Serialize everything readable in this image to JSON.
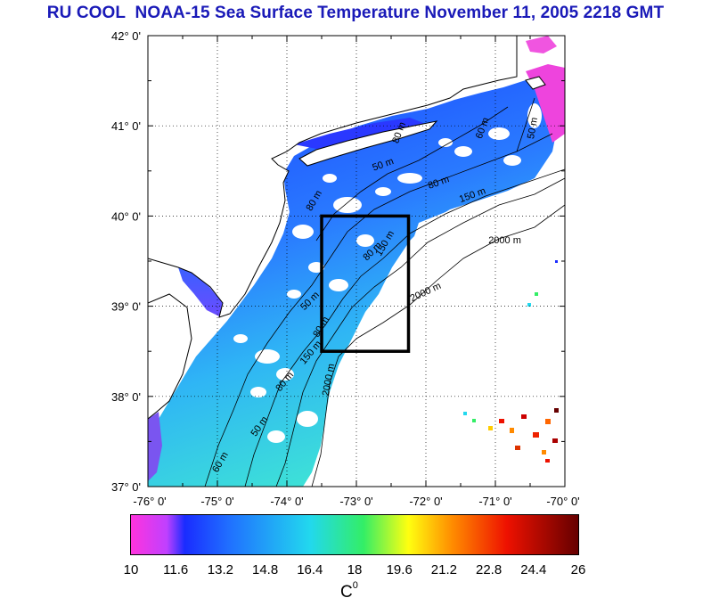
{
  "title": "RU COOL  NOAA-15 Sea Surface Temperature November 11, 2005 2218 GMT",
  "map": {
    "lat_labels": [
      "42° 0'",
      "41° 0'",
      "40° 0'",
      "39° 0'",
      "38° 0'",
      "37° 0'"
    ],
    "lon_labels": [
      "-76° 0'",
      "-75° 0'",
      "-74° 0'",
      "-73° 0'",
      "-72° 0'",
      "-71° 0'",
      "-70° 0'"
    ],
    "lat_range": [
      37,
      42
    ],
    "lon_range": [
      -76,
      -70
    ],
    "study_box": {
      "lon": [
        -73.5,
        -72.25
      ],
      "lat": [
        38.5,
        40
      ]
    },
    "contour_labels": [
      {
        "text": "2000 m",
        "lon": -71.1,
        "lat": 39.7,
        "rot": 0
      },
      {
        "text": "2000 m",
        "lon": -72.2,
        "lat": 39.05,
        "rot": -25
      },
      {
        "text": "2000 m",
        "lon": -73.4,
        "lat": 38.0,
        "rot": -80
      },
      {
        "text": "150 m",
        "lon": -71.5,
        "lat": 40.15,
        "rot": -20
      },
      {
        "text": "80 m",
        "lon": -71.95,
        "lat": 40.3,
        "rot": -20
      },
      {
        "text": "50 m",
        "lon": -72.75,
        "lat": 40.5,
        "rot": -20
      },
      {
        "text": "60 m",
        "lon": -71.2,
        "lat": 40.85,
        "rot": -70
      },
      {
        "text": "50 m",
        "lon": -70.45,
        "lat": 40.85,
        "rot": -80
      },
      {
        "text": "80 m",
        "lon": -72.4,
        "lat": 40.8,
        "rot": -70
      },
      {
        "text": "80 m",
        "lon": -72.85,
        "lat": 39.5,
        "rot": -45
      },
      {
        "text": "150 m",
        "lon": -72.65,
        "lat": 39.55,
        "rot": -60
      },
      {
        "text": "50 m",
        "lon": -73.75,
        "lat": 38.95,
        "rot": -45
      },
      {
        "text": "80 m",
        "lon": -73.55,
        "lat": 38.65,
        "rot": -60
      },
      {
        "text": "150 m",
        "lon": -73.75,
        "lat": 38.35,
        "rot": -50
      },
      {
        "text": "80 m",
        "lon": -74.1,
        "lat": 38.05,
        "rot": -50
      },
      {
        "text": "50 m",
        "lon": -74.45,
        "lat": 37.55,
        "rot": -55
      },
      {
        "text": "60 m",
        "lon": -75.0,
        "lat": 37.15,
        "rot": -60
      },
      {
        "text": "80 m",
        "lon": -73.65,
        "lat": 40.05,
        "rot": -60
      }
    ]
  },
  "colorbar": {
    "tick_labels": [
      "10",
      "11.6",
      "13.2",
      "14.8",
      "16.4",
      "18",
      "19.6",
      "21.2",
      "22.8",
      "24.4",
      "26"
    ],
    "unit": "C",
    "unit_sup": "0",
    "range": [
      10,
      26
    ]
  },
  "colors": {
    "title": "#1a1ab8",
    "land": "#ffffff",
    "coast": "#000000",
    "box": "#000000",
    "magenta": "#ff33dd",
    "blue": "#1a2cff",
    "cyan": "#22d8ee",
    "green": "#33ee66",
    "yellow": "#ffff10",
    "orange": "#ff8a00",
    "red": "#ee1100",
    "darkred": "#660000"
  }
}
